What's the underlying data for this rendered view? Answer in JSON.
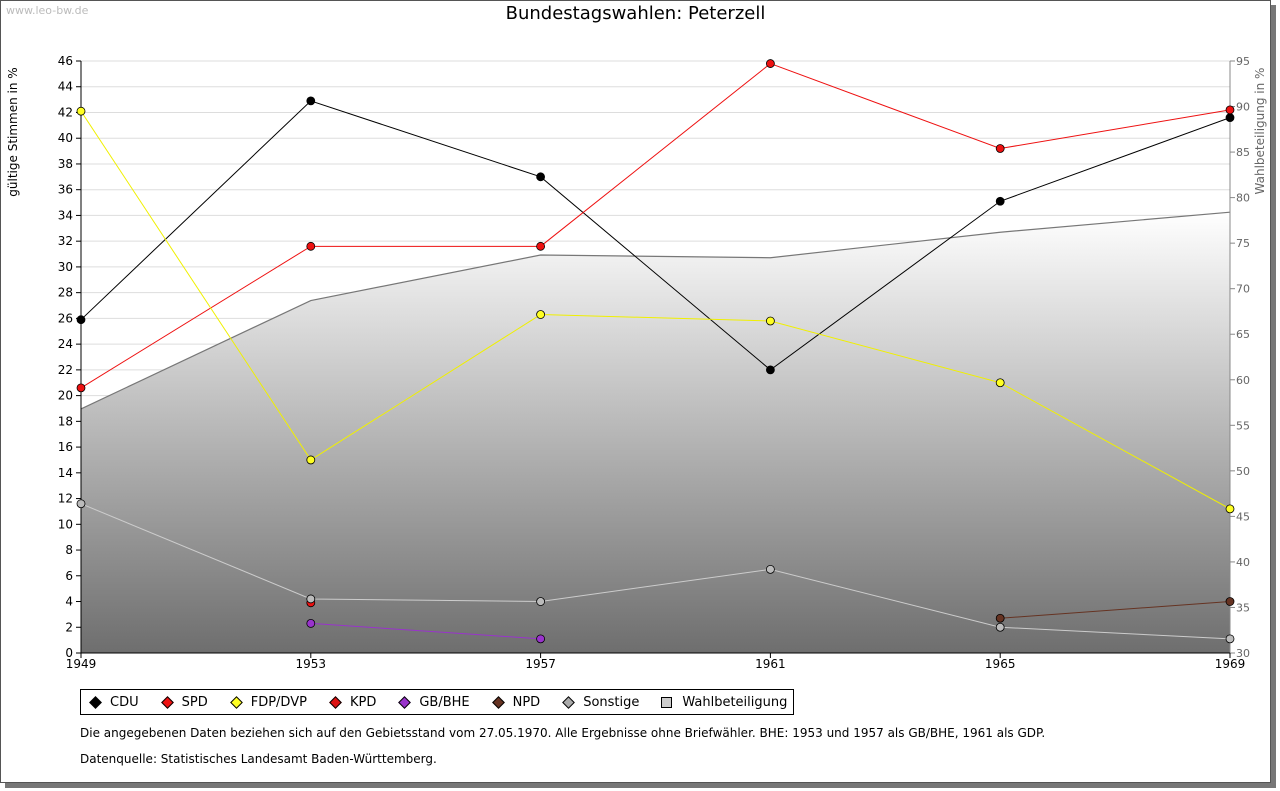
{
  "watermark": "www.leo-bw.de",
  "chart_data": {
    "type": "line",
    "title": "Bundestagswahlen: Peterzell",
    "ylabel": "gültige Stimmen in %",
    "y2label": "Wahlbeteiligung in %",
    "x": [
      1949,
      1953,
      1957,
      1961,
      1965,
      1969
    ],
    "xlim": [
      1949,
      1969
    ],
    "ylim": [
      0,
      46
    ],
    "yticks": [
      0,
      2,
      4,
      6,
      8,
      10,
      12,
      14,
      16,
      18,
      20,
      22,
      24,
      26,
      28,
      30,
      32,
      34,
      36,
      38,
      40,
      42,
      44,
      46
    ],
    "y2lim": [
      30,
      95
    ],
    "y2ticks": [
      30,
      35,
      40,
      45,
      50,
      55,
      60,
      65,
      70,
      75,
      80,
      85,
      90,
      95
    ],
    "grid": true,
    "area": {
      "name": "Wahlbeteiligung",
      "axis": "right",
      "values": [
        56.8,
        68.7,
        73.7,
        73.4,
        76.2,
        78.4
      ],
      "color": "#777777"
    },
    "series": [
      {
        "name": "CDU",
        "color": "#000000",
        "line": "#000000",
        "values": [
          25.9,
          42.9,
          37.0,
          22.0,
          35.1,
          41.6
        ]
      },
      {
        "name": "SPD",
        "color": "#ee1111",
        "line": "#ee1111",
        "values": [
          20.6,
          31.6,
          31.6,
          45.8,
          39.2,
          42.2
        ]
      },
      {
        "name": "FDP/DVP",
        "color": "#ffff22",
        "line": "#f0f000",
        "values": [
          42.1,
          15.0,
          26.3,
          25.8,
          21.0,
          11.2
        ]
      },
      {
        "name": "KPD",
        "color": "#ee1111",
        "line": "#ee1111",
        "values": [
          null,
          3.9,
          null,
          null,
          null,
          null
        ]
      },
      {
        "name": "GB/BHE",
        "color": "#9933cc",
        "line": "#9933cc",
        "values": [
          null,
          2.3,
          1.1,
          null,
          null,
          null
        ]
      },
      {
        "name": "NPD",
        "color": "#663322",
        "line": "#663322",
        "values": [
          null,
          null,
          null,
          null,
          2.7,
          4.0
        ]
      },
      {
        "name": "Sonstige",
        "color": "#bbbbbb",
        "line": "#cccccc",
        "values": [
          11.6,
          4.2,
          4.0,
          6.5,
          2.0,
          1.1
        ]
      }
    ],
    "legend": [
      "CDU",
      "SPD",
      "FDP/DVP",
      "KPD",
      "GB/BHE",
      "NPD",
      "Sonstige",
      "Wahlbeteiligung"
    ],
    "legend_placement": "bottom"
  },
  "legend_colors": {
    "CDU": "#000000",
    "SPD": "#ee1111",
    "FDP/DVP": "#ffff22",
    "KPD": "#dd1111",
    "GB/BHE": "#9933cc",
    "NPD": "#663322",
    "Sonstige": "#aaaaaa"
  },
  "note": "Die angegebenen Daten beziehen sich auf den Gebietsstand vom 27.05.1970. Alle Ergebnisse ohne Briefwähler. BHE: 1953 und 1957 als GB/BHE, 1961 als GDP.",
  "source": "Datenquelle: Statistisches Landesamt Baden-Württemberg."
}
